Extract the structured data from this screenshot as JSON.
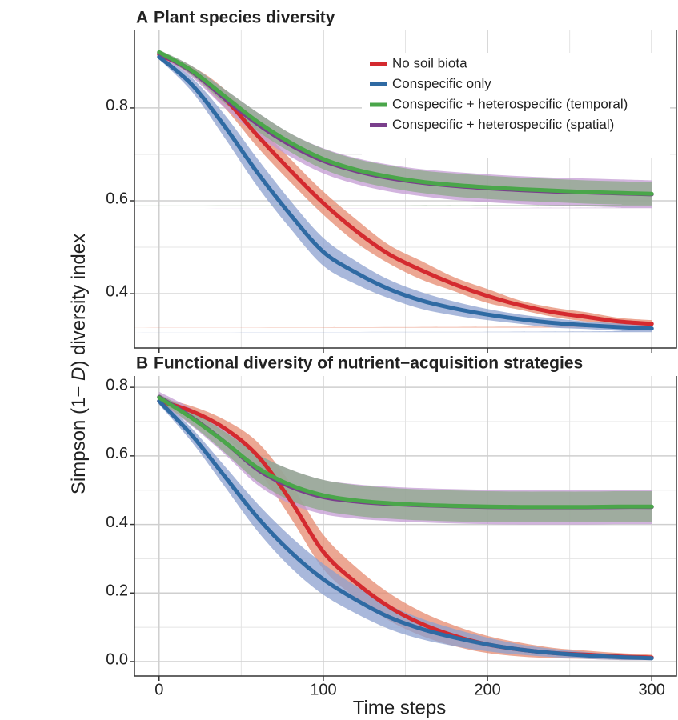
{
  "chart_data": [
    {
      "type": "line-band",
      "panel": "A",
      "title": "Plant species diversity",
      "ylabel": [
        "Simpson (1− ",
        "D",
        ") diversity index"
      ],
      "x": [
        0,
        20,
        40,
        60,
        80,
        100,
        120,
        140,
        160,
        180,
        200,
        220,
        240,
        260,
        280,
        300
      ],
      "xlim": [
        -15,
        315
      ],
      "xticks": [
        0,
        100,
        200,
        300
      ],
      "show_xtick_labels": false,
      "ylim": [
        0.283,
        0.967
      ],
      "yticks": [
        0.4,
        0.6,
        0.8
      ],
      "grid": true,
      "minor_grid": true,
      "legend": true,
      "legend_position": "top-right",
      "series": [
        {
          "name": "No soil biota",
          "color": "#d42a2f",
          "band_color": "#e58a6f",
          "values": [
            0.915,
            0.88,
            0.82,
            0.74,
            0.665,
            0.595,
            0.535,
            0.485,
            0.45,
            0.42,
            0.395,
            0.375,
            0.36,
            0.35,
            0.34,
            0.335
          ],
          "lower": [
            0.91,
            0.87,
            0.8,
            0.715,
            0.64,
            0.57,
            0.51,
            0.465,
            0.43,
            0.405,
            0.38,
            0.365,
            0.35,
            0.34,
            0.332,
            0.327
          ],
          "upper": [
            0.92,
            0.89,
            0.84,
            0.765,
            0.69,
            0.62,
            0.56,
            0.505,
            0.47,
            0.435,
            0.41,
            0.385,
            0.37,
            0.36,
            0.348,
            0.343
          ]
        },
        {
          "name": "Conspecific only",
          "color": "#2f6aa3",
          "band_color": "#8ca0cf",
          "values": [
            0.91,
            0.85,
            0.76,
            0.66,
            0.57,
            0.49,
            0.445,
            0.41,
            0.385,
            0.368,
            0.355,
            0.345,
            0.337,
            0.332,
            0.328,
            0.325
          ],
          "lower": [
            0.905,
            0.835,
            0.735,
            0.63,
            0.54,
            0.46,
            0.42,
            0.39,
            0.367,
            0.353,
            0.343,
            0.335,
            0.327,
            0.324,
            0.32,
            0.317
          ],
          "upper": [
            0.915,
            0.865,
            0.785,
            0.69,
            0.6,
            0.52,
            0.47,
            0.43,
            0.403,
            0.383,
            0.367,
            0.355,
            0.347,
            0.34,
            0.336,
            0.333
          ]
        },
        {
          "name": "Conspecific + heterospecific (spatial)",
          "color": "#7a3f8c",
          "band_color": "#c39bd3",
          "values": [
            0.918,
            0.878,
            0.82,
            0.765,
            0.72,
            0.686,
            0.664,
            0.649,
            0.639,
            0.632,
            0.627,
            0.623,
            0.62,
            0.618,
            0.616,
            0.614
          ],
          "lower": [
            0.912,
            0.866,
            0.8,
            0.74,
            0.695,
            0.659,
            0.636,
            0.62,
            0.61,
            0.602,
            0.597,
            0.593,
            0.59,
            0.588,
            0.586,
            0.584
          ],
          "upper": [
            0.924,
            0.89,
            0.84,
            0.79,
            0.745,
            0.713,
            0.692,
            0.678,
            0.668,
            0.662,
            0.657,
            0.653,
            0.65,
            0.648,
            0.646,
            0.644
          ]
        },
        {
          "name": "Conspecific + heterospecific (temporal)",
          "color": "#4aa64a",
          "band_color": "#8ea98a",
          "values": [
            0.92,
            0.88,
            0.825,
            0.77,
            0.725,
            0.69,
            0.667,
            0.652,
            0.641,
            0.634,
            0.629,
            0.625,
            0.622,
            0.619,
            0.617,
            0.615
          ],
          "lower": [
            0.915,
            0.87,
            0.81,
            0.75,
            0.705,
            0.668,
            0.644,
            0.628,
            0.617,
            0.609,
            0.604,
            0.6,
            0.597,
            0.594,
            0.592,
            0.59
          ],
          "upper": [
            0.925,
            0.89,
            0.84,
            0.79,
            0.745,
            0.712,
            0.69,
            0.676,
            0.665,
            0.659,
            0.654,
            0.65,
            0.647,
            0.644,
            0.642,
            0.64
          ]
        }
      ],
      "legend_order": [
        0,
        1,
        3,
        2
      ]
    },
    {
      "type": "line-band",
      "panel": "B",
      "title": "Functional diversity of nutrient−acquisition strategies",
      "xlabel": "Time steps",
      "x": [
        0,
        20,
        40,
        60,
        80,
        100,
        120,
        140,
        160,
        180,
        200,
        220,
        240,
        260,
        280,
        300
      ],
      "xlim": [
        -15,
        315
      ],
      "xticks": [
        0,
        100,
        200,
        300
      ],
      "show_xtick_labels": true,
      "ylim": [
        -0.042,
        0.833
      ],
      "yticks": [
        {
          "value": 0,
          "label": "0.0"
        },
        0.2,
        0.4,
        0.6,
        0.8
      ],
      "grid": true,
      "minor_grid": true,
      "legend": false,
      "series": [
        {
          "color": "#d42a2f",
          "band_color": "#e58a6f",
          "values": [
            0.76,
            0.73,
            0.68,
            0.6,
            0.47,
            0.32,
            0.23,
            0.16,
            0.11,
            0.075,
            0.05,
            0.035,
            0.025,
            0.02,
            0.015,
            0.012
          ],
          "lower": [
            0.75,
            0.715,
            0.655,
            0.56,
            0.42,
            0.27,
            0.185,
            0.12,
            0.075,
            0.045,
            0.025,
            0.015,
            0.01,
            0.008,
            0.005,
            0.004
          ],
          "upper": [
            0.77,
            0.745,
            0.705,
            0.64,
            0.52,
            0.37,
            0.275,
            0.2,
            0.145,
            0.105,
            0.075,
            0.055,
            0.04,
            0.032,
            0.025,
            0.02
          ]
        },
        {
          "color": "#2f6aa3",
          "band_color": "#8ca0cf",
          "values": [
            0.76,
            0.66,
            0.54,
            0.42,
            0.32,
            0.24,
            0.18,
            0.13,
            0.095,
            0.07,
            0.05,
            0.035,
            0.025,
            0.018,
            0.013,
            0.01
          ],
          "lower": [
            0.75,
            0.64,
            0.51,
            0.38,
            0.275,
            0.195,
            0.14,
            0.095,
            0.065,
            0.045,
            0.03,
            0.02,
            0.013,
            0.008,
            0.005,
            0.004
          ],
          "upper": [
            0.77,
            0.68,
            0.57,
            0.46,
            0.365,
            0.285,
            0.22,
            0.165,
            0.125,
            0.095,
            0.07,
            0.05,
            0.037,
            0.028,
            0.021,
            0.016
          ]
        },
        {
          "color": "#7a3f8c",
          "band_color": "#c39bd3",
          "values": [
            0.772,
            0.712,
            0.64,
            0.56,
            0.51,
            0.48,
            0.467,
            0.46,
            0.456,
            0.453,
            0.451,
            0.45,
            0.45,
            0.45,
            0.451,
            0.451
          ],
          "lower": [
            0.757,
            0.687,
            0.605,
            0.515,
            0.46,
            0.43,
            0.417,
            0.41,
            0.406,
            0.403,
            0.401,
            0.4,
            0.4,
            0.4,
            0.401,
            0.401
          ],
          "upper": [
            0.787,
            0.737,
            0.675,
            0.605,
            0.56,
            0.53,
            0.517,
            0.51,
            0.506,
            0.503,
            0.501,
            0.5,
            0.5,
            0.5,
            0.501,
            0.501
          ]
        },
        {
          "color": "#4aa64a",
          "band_color": "#8ea98a",
          "values": [
            0.77,
            0.71,
            0.64,
            0.565,
            0.515,
            0.485,
            0.47,
            0.462,
            0.457,
            0.454,
            0.452,
            0.451,
            0.451,
            0.451,
            0.452,
            0.452
          ],
          "lower": [
            0.76,
            0.69,
            0.61,
            0.525,
            0.47,
            0.44,
            0.425,
            0.417,
            0.412,
            0.409,
            0.407,
            0.406,
            0.406,
            0.406,
            0.407,
            0.407
          ],
          "upper": [
            0.78,
            0.73,
            0.67,
            0.605,
            0.56,
            0.53,
            0.515,
            0.507,
            0.502,
            0.499,
            0.497,
            0.496,
            0.496,
            0.496,
            0.497,
            0.497
          ]
        }
      ]
    }
  ]
}
